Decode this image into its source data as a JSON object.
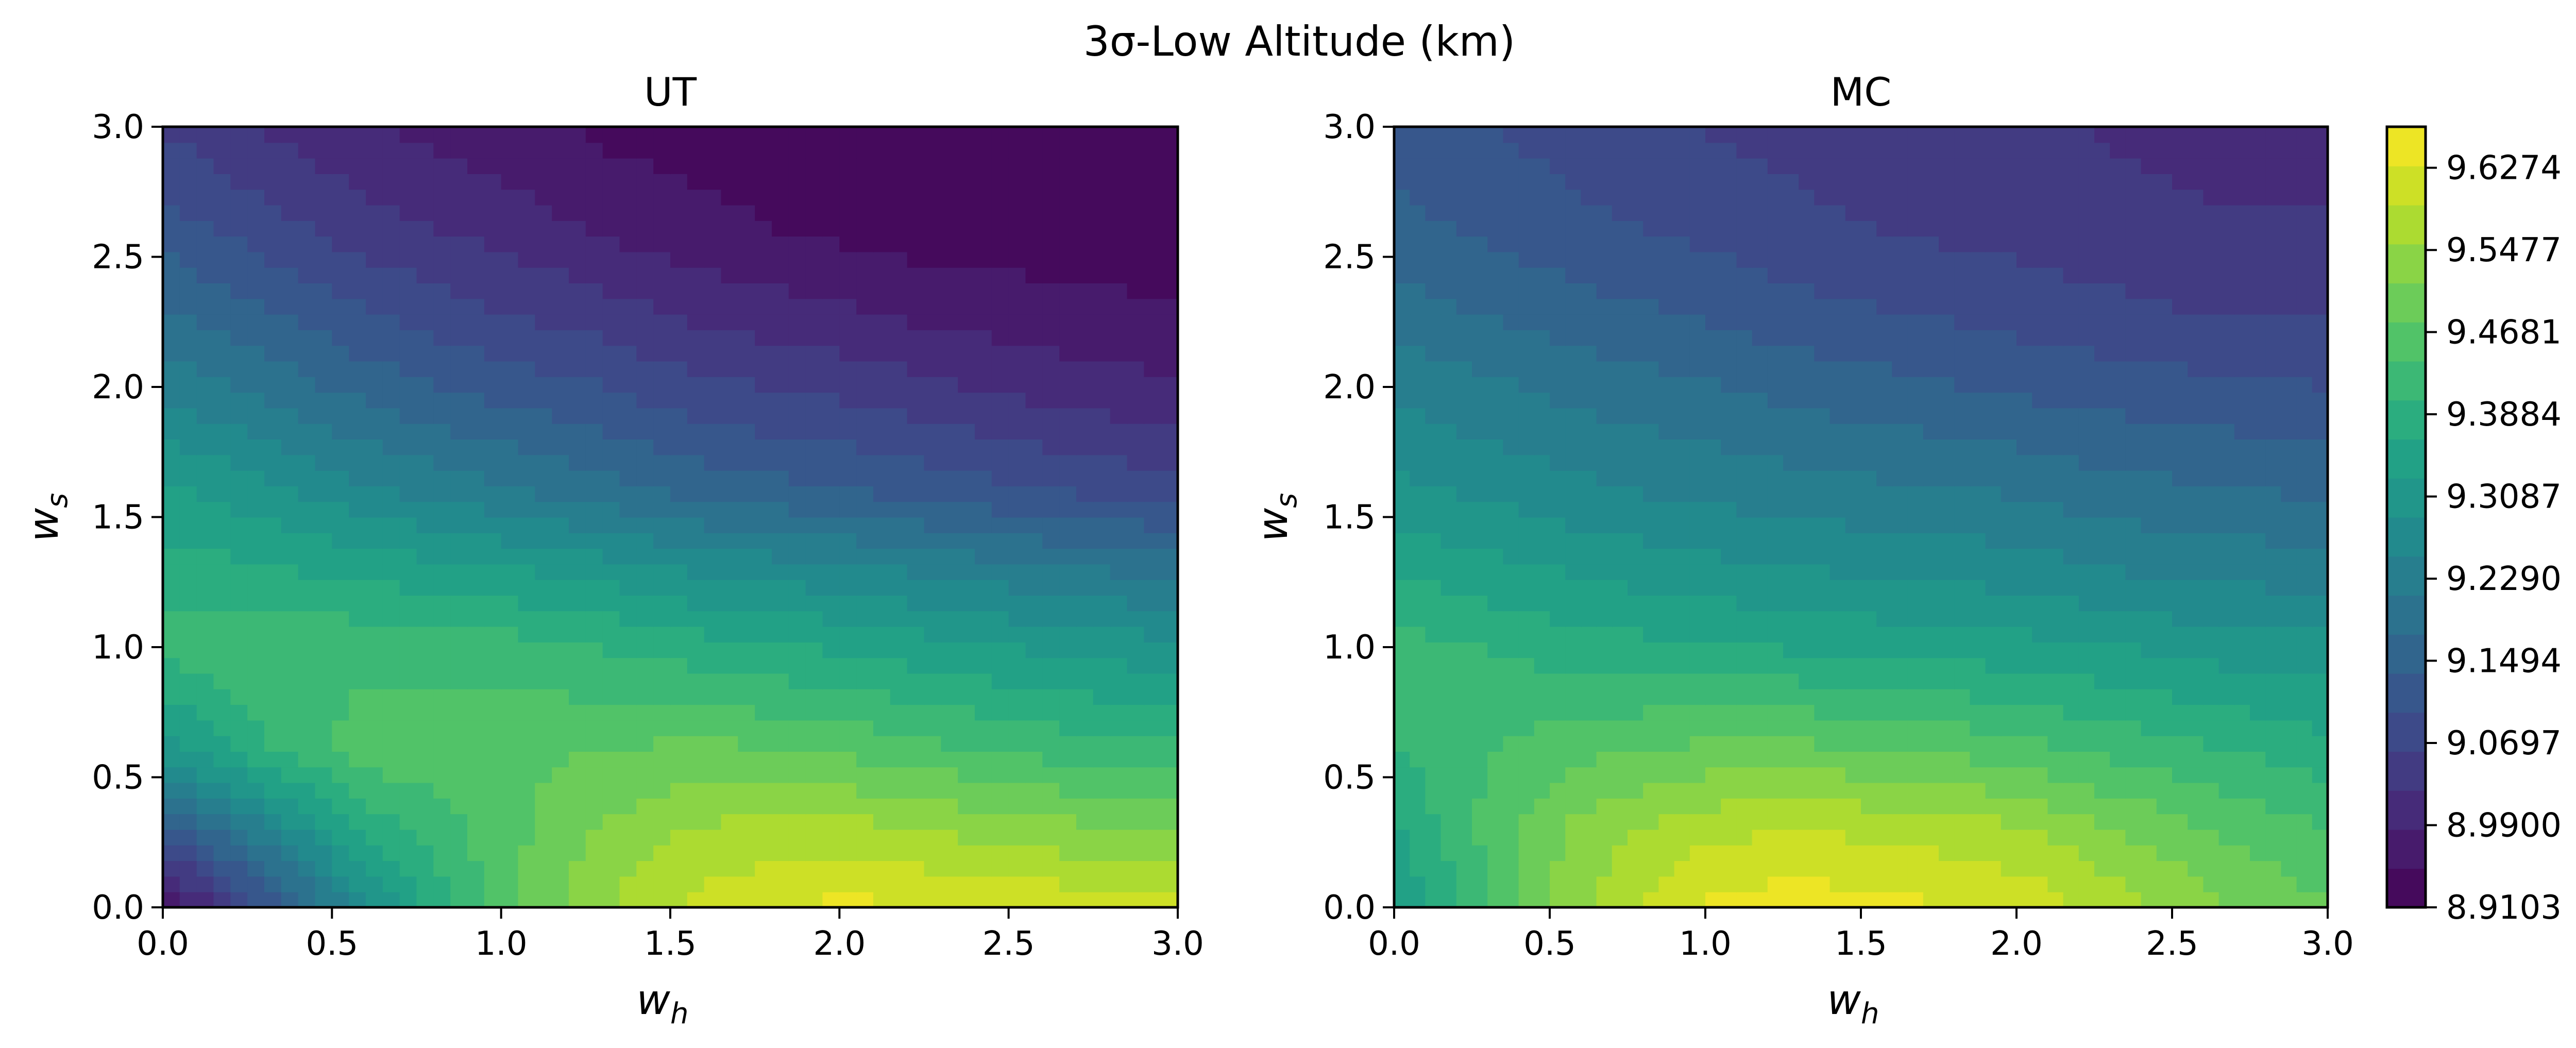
{
  "chart_data": {
    "type": "heatmap",
    "title": "3σ-Low Altitude (km)",
    "colormap": "viridis",
    "panels": [
      {
        "title": "UT",
        "xlabel": "w",
        "xlabel_sub": "h",
        "ylabel": "w",
        "ylabel_sub": "s",
        "xlim": [
          0,
          3
        ],
        "ylim": [
          0,
          3
        ],
        "x_ticks": [
          "0.0",
          "0.5",
          "1.0",
          "1.5",
          "2.0",
          "2.5",
          "3.0"
        ],
        "y_ticks": [
          "0.0",
          "0.5",
          "1.0",
          "1.5",
          "2.0",
          "2.5",
          "3.0"
        ],
        "x": [
          0,
          0.3,
          0.6,
          1.0,
          1.3,
          1.6,
          2.0,
          2.3,
          2.6,
          3.0
        ],
        "y": [
          0,
          0.3,
          0.6,
          1.0,
          1.3,
          1.6,
          2.0,
          2.3,
          2.6,
          3.0
        ],
        "z": [
          [
            8.93,
            9.1,
            9.28,
            9.47,
            9.55,
            9.61,
            9.64,
            9.63,
            9.62,
            9.6
          ],
          [
            9.12,
            9.24,
            9.38,
            9.46,
            9.52,
            9.56,
            9.57,
            9.55,
            9.53,
            9.51
          ],
          [
            9.3,
            9.4,
            9.46,
            9.47,
            9.48,
            9.49,
            9.47,
            9.45,
            9.43,
            9.41
          ],
          [
            9.42,
            9.43,
            9.43,
            9.42,
            9.4,
            9.38,
            9.36,
            9.34,
            9.32,
            9.3
          ],
          [
            9.38,
            9.37,
            9.35,
            9.33,
            9.31,
            9.28,
            9.26,
            9.24,
            9.22,
            9.2
          ],
          [
            9.34,
            9.3,
            9.26,
            9.22,
            9.19,
            9.16,
            9.14,
            9.12,
            9.1,
            9.08
          ],
          [
            9.24,
            9.2,
            9.16,
            9.12,
            9.1,
            9.07,
            9.05,
            9.03,
            9.01,
            8.99
          ],
          [
            9.18,
            9.14,
            9.1,
            9.06,
            9.04,
            9.01,
            8.99,
            8.97,
            8.96,
            8.95
          ],
          [
            9.12,
            9.08,
            9.04,
            9.01,
            8.98,
            8.96,
            8.94,
            8.93,
            8.93,
            8.93
          ],
          [
            9.06,
            9.02,
            8.99,
            8.96,
            8.94,
            8.93,
            8.92,
            8.91,
            8.91,
            8.91
          ]
        ]
      },
      {
        "title": "MC",
        "xlabel": "w",
        "xlabel_sub": "h",
        "ylabel": "w",
        "ylabel_sub": "s",
        "xlim": [
          0,
          3
        ],
        "ylim": [
          0,
          3
        ],
        "x_ticks": [
          "0.0",
          "0.5",
          "1.0",
          "1.5",
          "2.0",
          "2.5",
          "3.0"
        ],
        "y_ticks": [
          "0.0",
          "0.5",
          "1.0",
          "1.5",
          "2.0",
          "2.5",
          "3.0"
        ],
        "x": [
          0,
          0.3,
          0.6,
          1.0,
          1.3,
          1.6,
          2.0,
          2.3,
          2.6,
          3.0
        ],
        "y": [
          0,
          0.3,
          0.6,
          1.0,
          1.3,
          1.6,
          2.0,
          2.3,
          2.6,
          3.0
        ],
        "z": [
          [
            9.32,
            9.44,
            9.55,
            9.64,
            9.65,
            9.64,
            9.62,
            9.58,
            9.53,
            9.48
          ],
          [
            9.36,
            9.45,
            9.53,
            9.58,
            9.59,
            9.58,
            9.56,
            9.52,
            9.48,
            9.44
          ],
          [
            9.4,
            9.44,
            9.47,
            9.49,
            9.49,
            9.48,
            9.46,
            9.43,
            9.41,
            9.38
          ],
          [
            9.42,
            9.4,
            9.38,
            9.37,
            9.36,
            9.35,
            9.34,
            9.33,
            9.31,
            9.3
          ],
          [
            9.36,
            9.34,
            9.32,
            9.3,
            9.29,
            9.28,
            9.27,
            9.25,
            9.24,
            9.23
          ],
          [
            9.3,
            9.28,
            9.26,
            9.24,
            9.23,
            9.22,
            9.21,
            9.19,
            9.18,
            9.17
          ],
          [
            9.24,
            9.22,
            9.2,
            9.18,
            9.16,
            9.15,
            9.13,
            9.12,
            9.11,
            9.1
          ],
          [
            9.19,
            9.17,
            9.15,
            9.13,
            9.11,
            9.1,
            9.08,
            9.07,
            9.06,
            9.06
          ],
          [
            9.15,
            9.13,
            9.11,
            9.09,
            9.07,
            9.06,
            9.05,
            9.04,
            9.03,
            9.03
          ],
          [
            9.12,
            9.1,
            9.08,
            9.06,
            9.05,
            9.04,
            9.03,
            9.02,
            9.01,
            9.0
          ]
        ]
      }
    ],
    "colorbar": {
      "min": 8.9103,
      "max": 9.6672,
      "levels": 20,
      "ticks": [
        8.9103,
        8.99,
        9.0697,
        9.1494,
        9.229,
        9.3087,
        9.3884,
        9.4681,
        9.5477,
        9.6274
      ],
      "tick_labels": [
        "8.9103",
        "8.9900",
        "9.0697",
        "9.1494",
        "9.2290",
        "9.3087",
        "9.3884",
        "9.4681",
        "9.5477",
        "9.6274"
      ]
    }
  }
}
